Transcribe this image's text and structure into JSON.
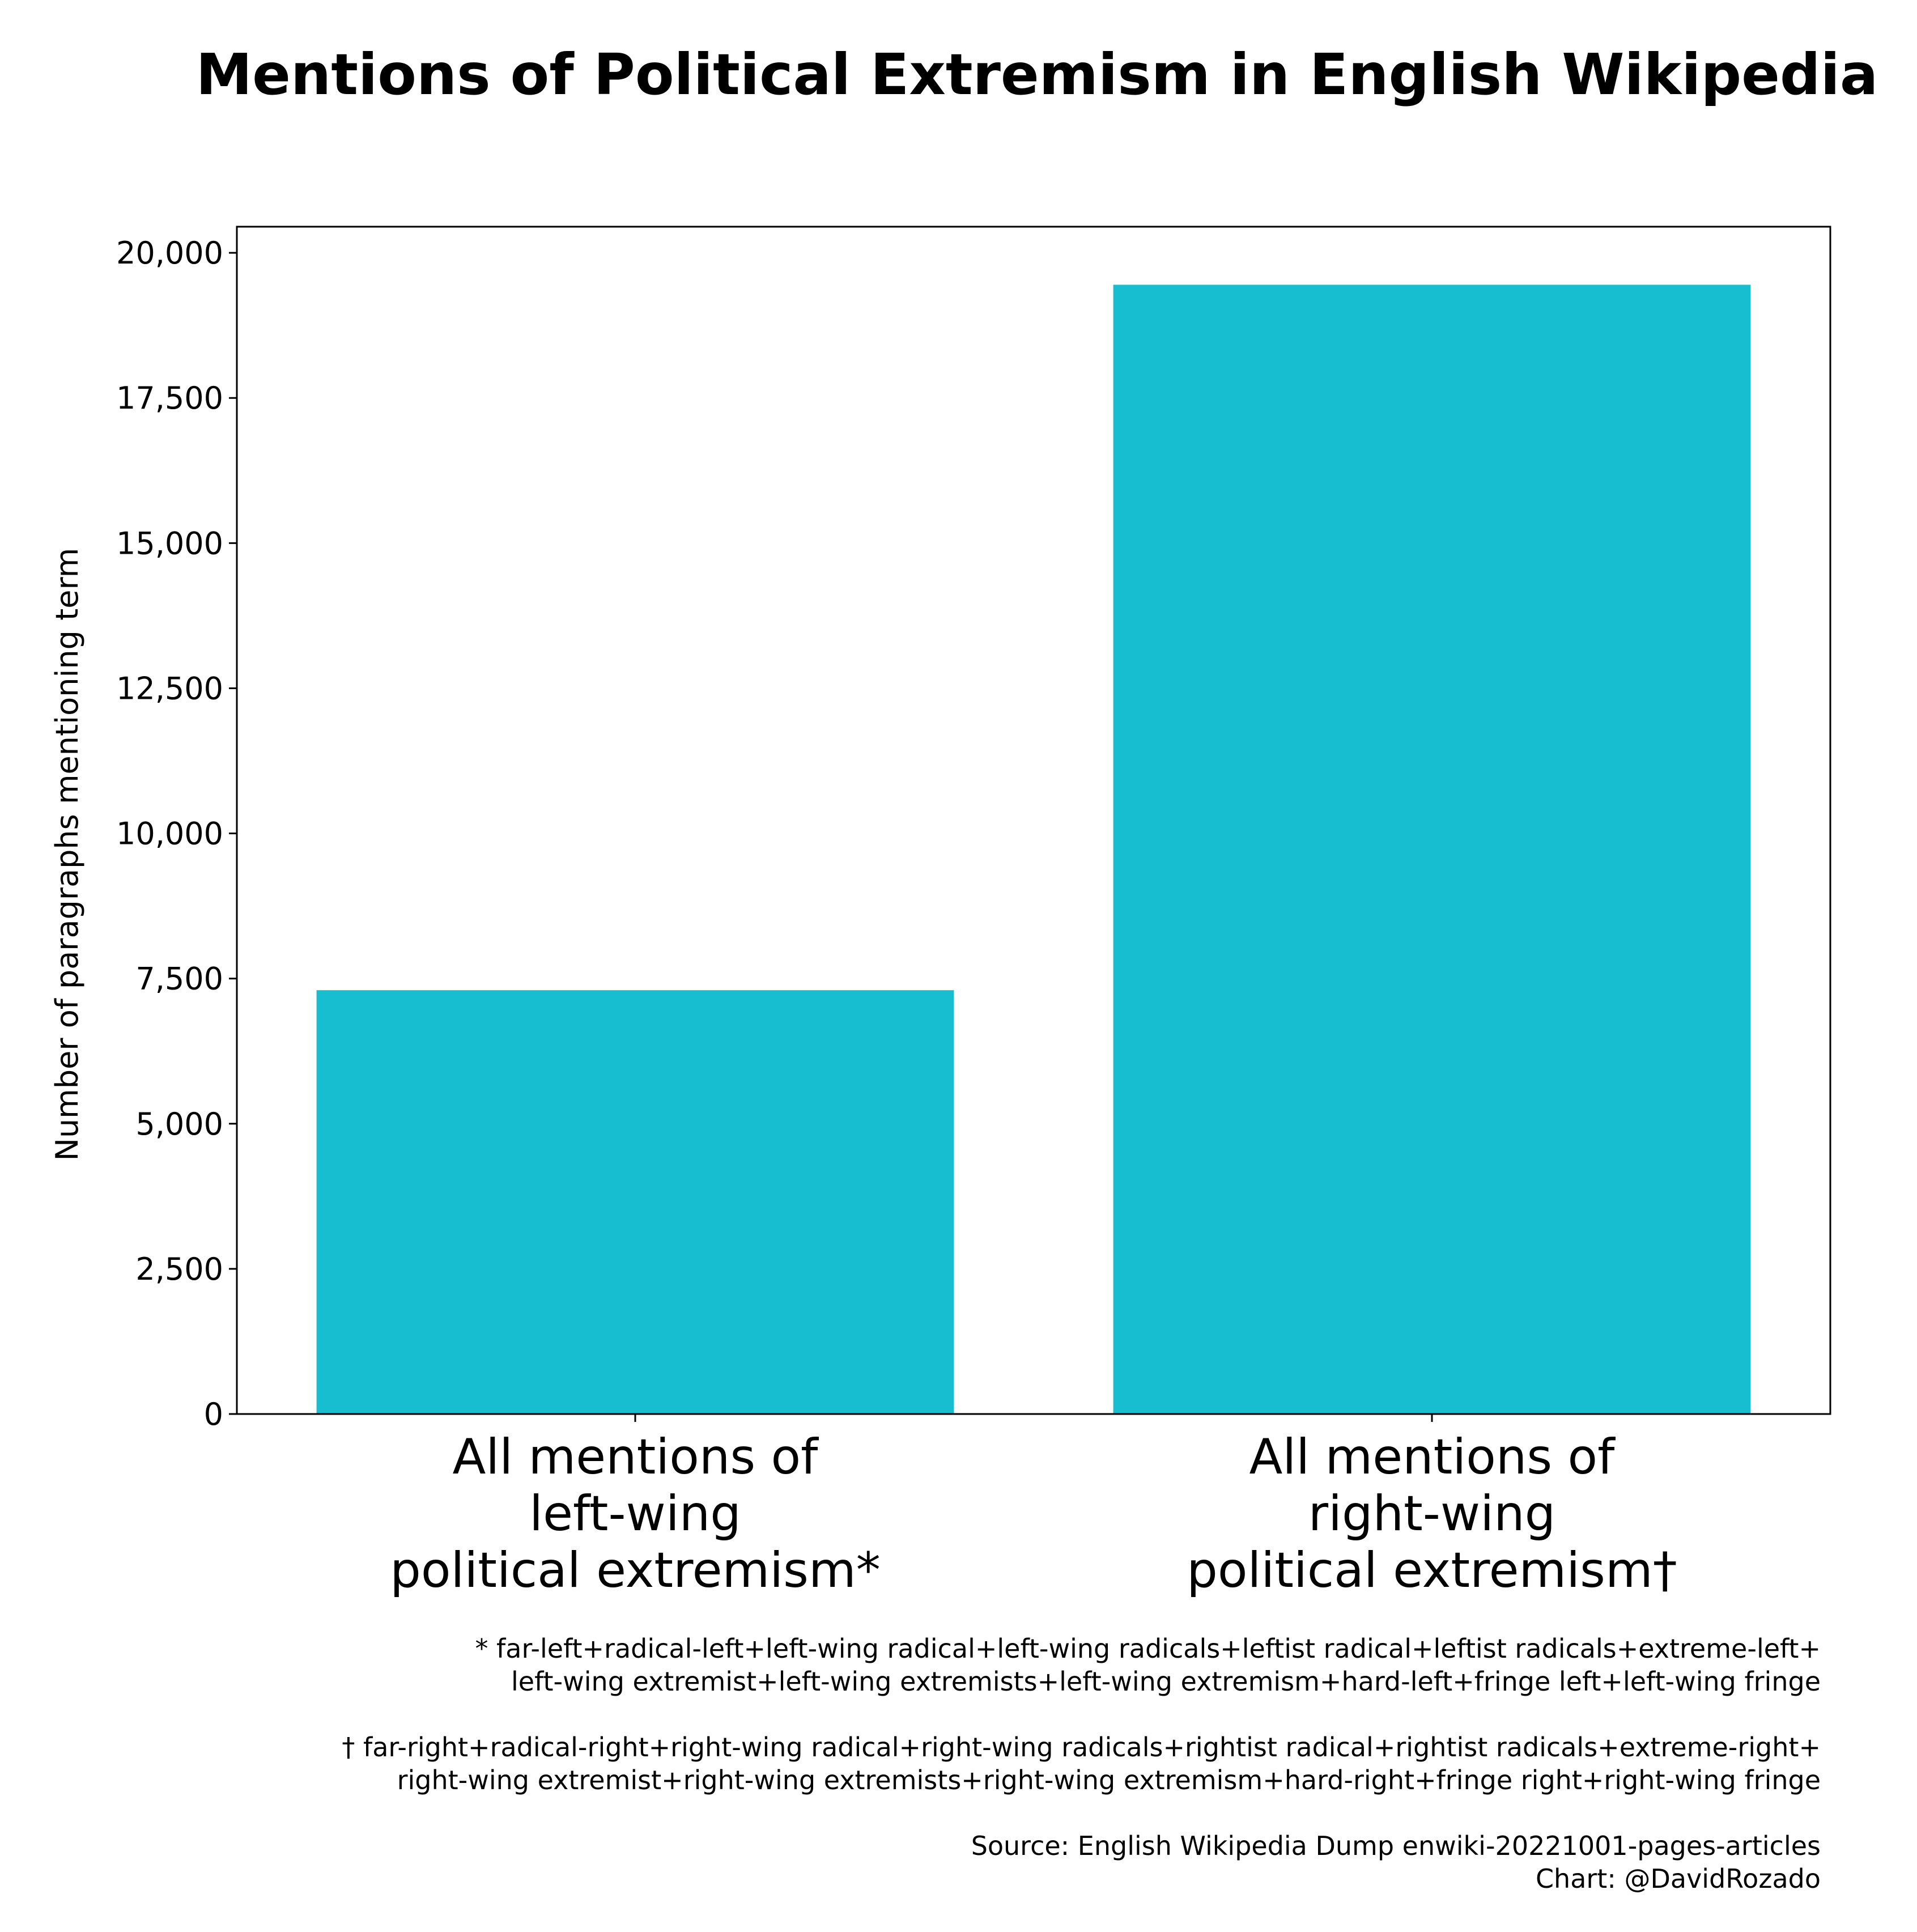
{
  "title": "Mentions of Political Extremism in English Wikipedia",
  "chart_data": {
    "type": "bar",
    "categories": [
      [
        "All mentions of",
        "left-wing",
        "political extremism*"
      ],
      [
        "All mentions of",
        "right-wing",
        "political extremism†"
      ]
    ],
    "values": [
      7300,
      19450
    ],
    "ylabel": "Number of paragraphs mentioning term",
    "ylim": [
      0,
      20450
    ],
    "yticks": [
      0,
      2500,
      5000,
      7500,
      10000,
      12500,
      15000,
      17500,
      20000
    ],
    "ytick_labels": [
      "0",
      "2,500",
      "5,000",
      "7,500",
      "10,000",
      "12,500",
      "15,000",
      "17,500",
      "20,000"
    ],
    "bar_color": "#17becf",
    "grid": false
  },
  "footnotes": {
    "left_line1": "* far-left+radical-left+left-wing radical+left-wing radicals+leftist radical+leftist radicals+extreme-left+",
    "left_line2": "left-wing extremist+left-wing extremists+left-wing extremism+hard-left+fringe left+left-wing fringe",
    "right_line1": "† far-right+radical-right+right-wing radical+right-wing radicals+rightist radical+rightist radicals+extreme-right+",
    "right_line2": "right-wing extremist+right-wing extremists+right-wing extremism+hard-right+fringe right+right-wing fringe",
    "source": "Source: English Wikipedia Dump enwiki-20221001-pages-articles",
    "credit": "Chart: @DavidRozado"
  }
}
